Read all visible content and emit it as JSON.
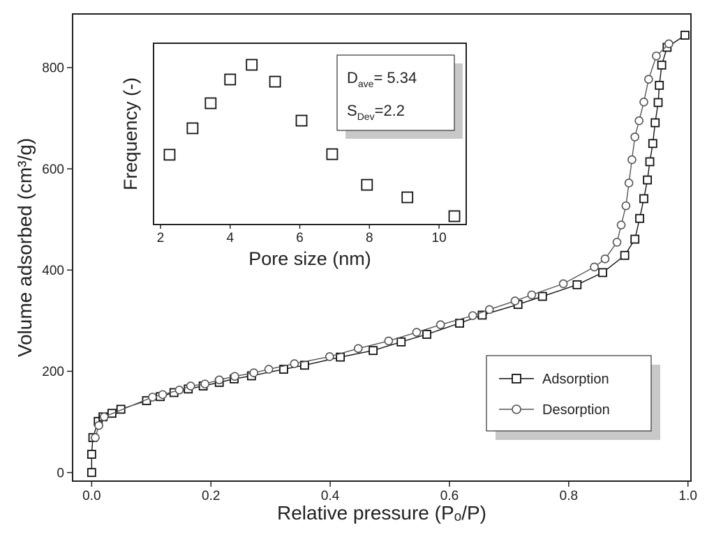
{
  "chart_data": [
    {
      "type": "line",
      "xlabel": "Relative pressure (Pₒ/P)",
      "ylabel": "Volume adsorbed (cm³/g)",
      "xlim": [
        -0.032,
        1.005
      ],
      "ylim": [
        -17,
        906
      ],
      "xticks": [
        {
          "value": 0,
          "label": "0.0"
        },
        0.2,
        0.4,
        0.6,
        0.8,
        {
          "value": 1,
          "label": "1.0"
        }
      ],
      "yticks": [
        0,
        200,
        400,
        600,
        800
      ],
      "legend": "lower right",
      "series": [
        {
          "name": "Adsorption",
          "color": "#111111",
          "marker": "square",
          "x": [
            0,
            0,
            0.002,
            0.011,
            0.019,
            0.034,
            0.049,
            0.092,
            0.115,
            0.138,
            0.162,
            0.187,
            0.214,
            0.239,
            0.268,
            0.322,
            0.357,
            0.417,
            0.472,
            0.519,
            0.562,
            0.617,
            0.655,
            0.715,
            0.756,
            0.814,
            0.857,
            0.894,
            0.911,
            0.919,
            0.926,
            0.932,
            0.936,
            0.941,
            0.945,
            0.95,
            0.952,
            0.956,
            0.965,
            0.995
          ],
          "values": [
            0,
            36,
            69,
            101,
            110,
            117,
            125,
            142,
            150,
            158,
            165,
            171,
            178,
            185,
            191,
            204,
            212,
            228,
            241,
            258,
            273,
            295,
            311,
            332,
            348,
            371,
            395,
            429,
            461,
            502,
            541,
            578,
            614,
            650,
            691,
            731,
            765,
            805,
            840,
            864
          ]
        },
        {
          "name": "Desorption",
          "color": "#555555",
          "marker": "circle",
          "x": [
            0.006,
            0.012,
            0.021,
            0.102,
            0.119,
            0.147,
            0.166,
            0.19,
            0.214,
            0.24,
            0.272,
            0.297,
            0.34,
            0.399,
            0.447,
            0.498,
            0.545,
            0.585,
            0.639,
            0.667,
            0.71,
            0.738,
            0.791,
            0.843,
            0.861,
            0.881,
            0.888,
            0.896,
            0.901,
            0.906,
            0.911,
            0.918,
            0.926,
            0.934,
            0.947,
            0.968
          ],
          "values": [
            69,
            93,
            110,
            149,
            154,
            163,
            171,
            175,
            183,
            190,
            197,
            204,
            215,
            229,
            245,
            260,
            277,
            292,
            310,
            322,
            339,
            351,
            373,
            406,
            422,
            455,
            489,
            527,
            572,
            618,
            663,
            695,
            732,
            777,
            823,
            847
          ]
        }
      ]
    },
    {
      "type": "scatter",
      "xlabel": "Pore size (nm)",
      "ylabel": "Frequency (-)",
      "xlim": [
        1.8,
        10.78
      ],
      "ylim": [
        0,
        1
      ],
      "xticks": [
        2,
        4,
        6,
        8,
        10
      ],
      "series": [
        {
          "color": "#111111",
          "marker": "square",
          "x": [
            2.26,
            2.92,
            3.44,
            4.0,
            4.62,
            5.29,
            6.05,
            6.93,
            7.93,
            9.09,
            10.44
          ],
          "values": [
            0.385,
            0.531,
            0.669,
            0.8,
            0.881,
            0.788,
            0.573,
            0.388,
            0.219,
            0.15,
            0.046
          ]
        }
      ],
      "annotations": [
        {
          "base": "D",
          "sub": "ave",
          "text": "= 5.34"
        },
        {
          "base": "S",
          "sub": "Dev",
          "text": "=2.2"
        }
      ]
    }
  ]
}
